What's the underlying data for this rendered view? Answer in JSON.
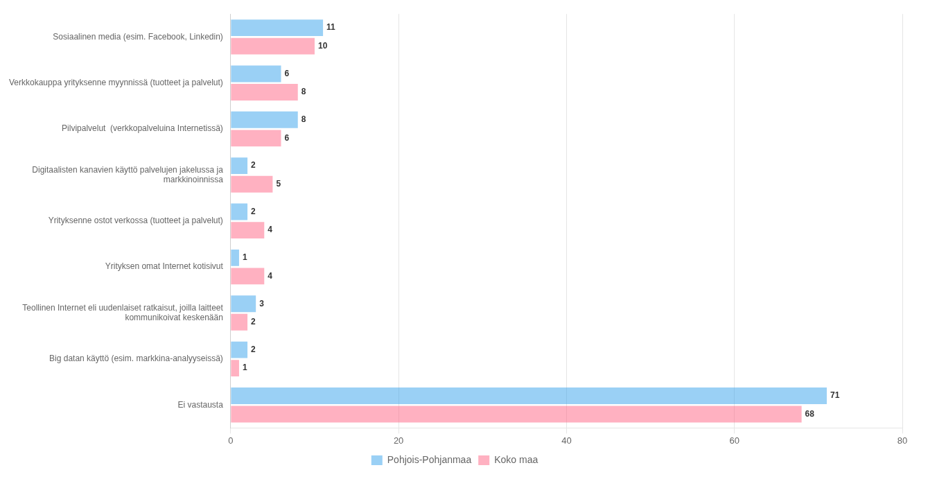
{
  "chart_data": {
    "type": "bar",
    "orientation": "horizontal",
    "categories": [
      "Sosiaalinen media (esim. Facebook, Linkedin)",
      "Verkkokauppa yrityksenne myynnissä (tuotteet ja palvelut)",
      "Pilvipalvelut  (verkkopalveluina Internetissä)",
      "Digitaalisten kanavien käyttö palvelujen jakelussa ja\nmarkkinoinnissa",
      "Yrityksenne ostot verkossa (tuotteet ja palvelut)",
      "Yrityksen omat Internet kotisivut",
      "Teollinen Internet eli uudenlaiset ratkaisut, joilla laitteet\nkommunikoivat keskenään",
      "Big datan käyttö (esim. markkina-analyyseissä)",
      "Ei vastausta"
    ],
    "series": [
      {
        "name": "Pohjois-Pohjanmaa",
        "values": [
          11,
          6,
          8,
          2,
          2,
          1,
          3,
          2,
          71
        ]
      },
      {
        "name": "Koko maa",
        "values": [
          10,
          8,
          6,
          5,
          4,
          4,
          2,
          1,
          68
        ]
      }
    ],
    "xlim": [
      0,
      80
    ],
    "xticks": [
      0,
      20,
      40,
      60,
      80
    ],
    "grid": true,
    "legend": "bottom",
    "data_labels": true
  }
}
